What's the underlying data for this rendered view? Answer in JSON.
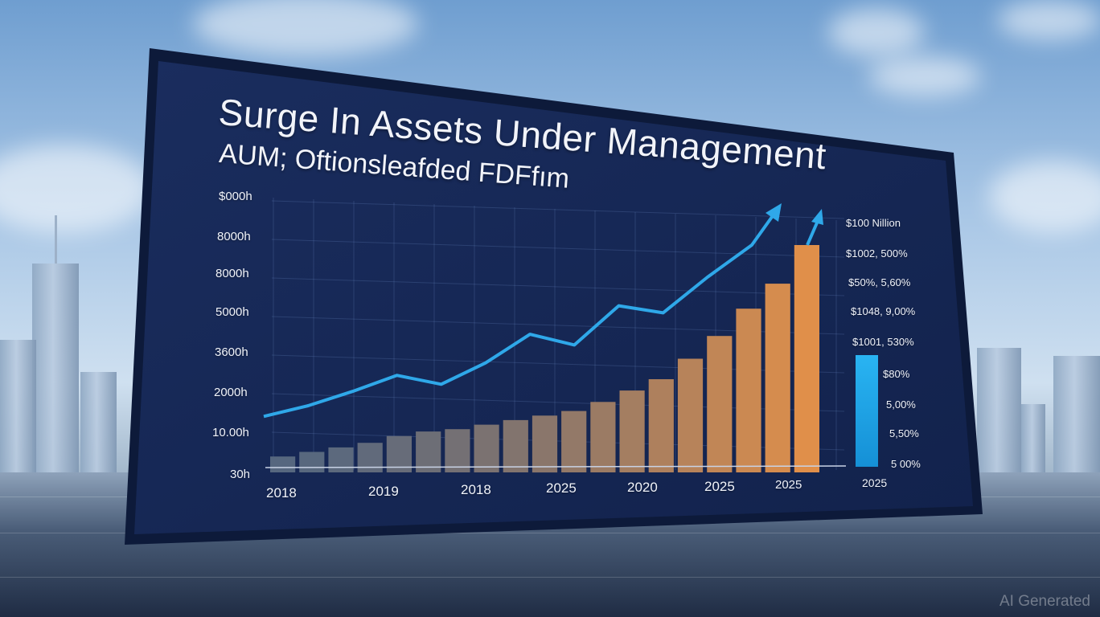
{
  "chart_data": {
    "type": "bar",
    "title": "Surge In Assets Under Management",
    "subtitle": "AUM; Oftionsleafded FDFfım",
    "y_tick_labels": [
      "$000h",
      "8000h",
      "8000h",
      "5000h",
      "3600h",
      "2000h",
      "10.00h",
      "30h"
    ],
    "x_tick_labels": [
      "2018",
      "2019",
      "2018",
      "2025",
      "2020",
      "2025",
      "2025",
      "2025"
    ],
    "right_labels": [
      "$100 Nillion",
      "$1002, 500%",
      "$50%, 5,60%",
      "$1048, 9,00%",
      "$1001, 530%",
      "$80%",
      "5,00%",
      "5,50%",
      "5 00%"
    ],
    "bars": [
      0.07,
      0.09,
      0.11,
      0.13,
      0.16,
      0.18,
      0.19,
      0.21,
      0.23,
      0.25,
      0.27,
      0.31,
      0.36,
      0.41,
      0.5,
      0.6,
      0.72,
      0.83,
      1.0
    ],
    "line": [
      0.12,
      0.18,
      0.26,
      0.35,
      0.3,
      0.42,
      0.58,
      0.52,
      0.74,
      0.7,
      0.9,
      1.08
    ],
    "accent_bar_fraction": 0.55,
    "colors": {
      "panel": "#152756",
      "bar_start": "#56677f",
      "bar_end": "#e08f4a",
      "line": "#2fa8e9",
      "accent_bar": "#1fa3e5"
    }
  },
  "watermark": "AI Generated"
}
